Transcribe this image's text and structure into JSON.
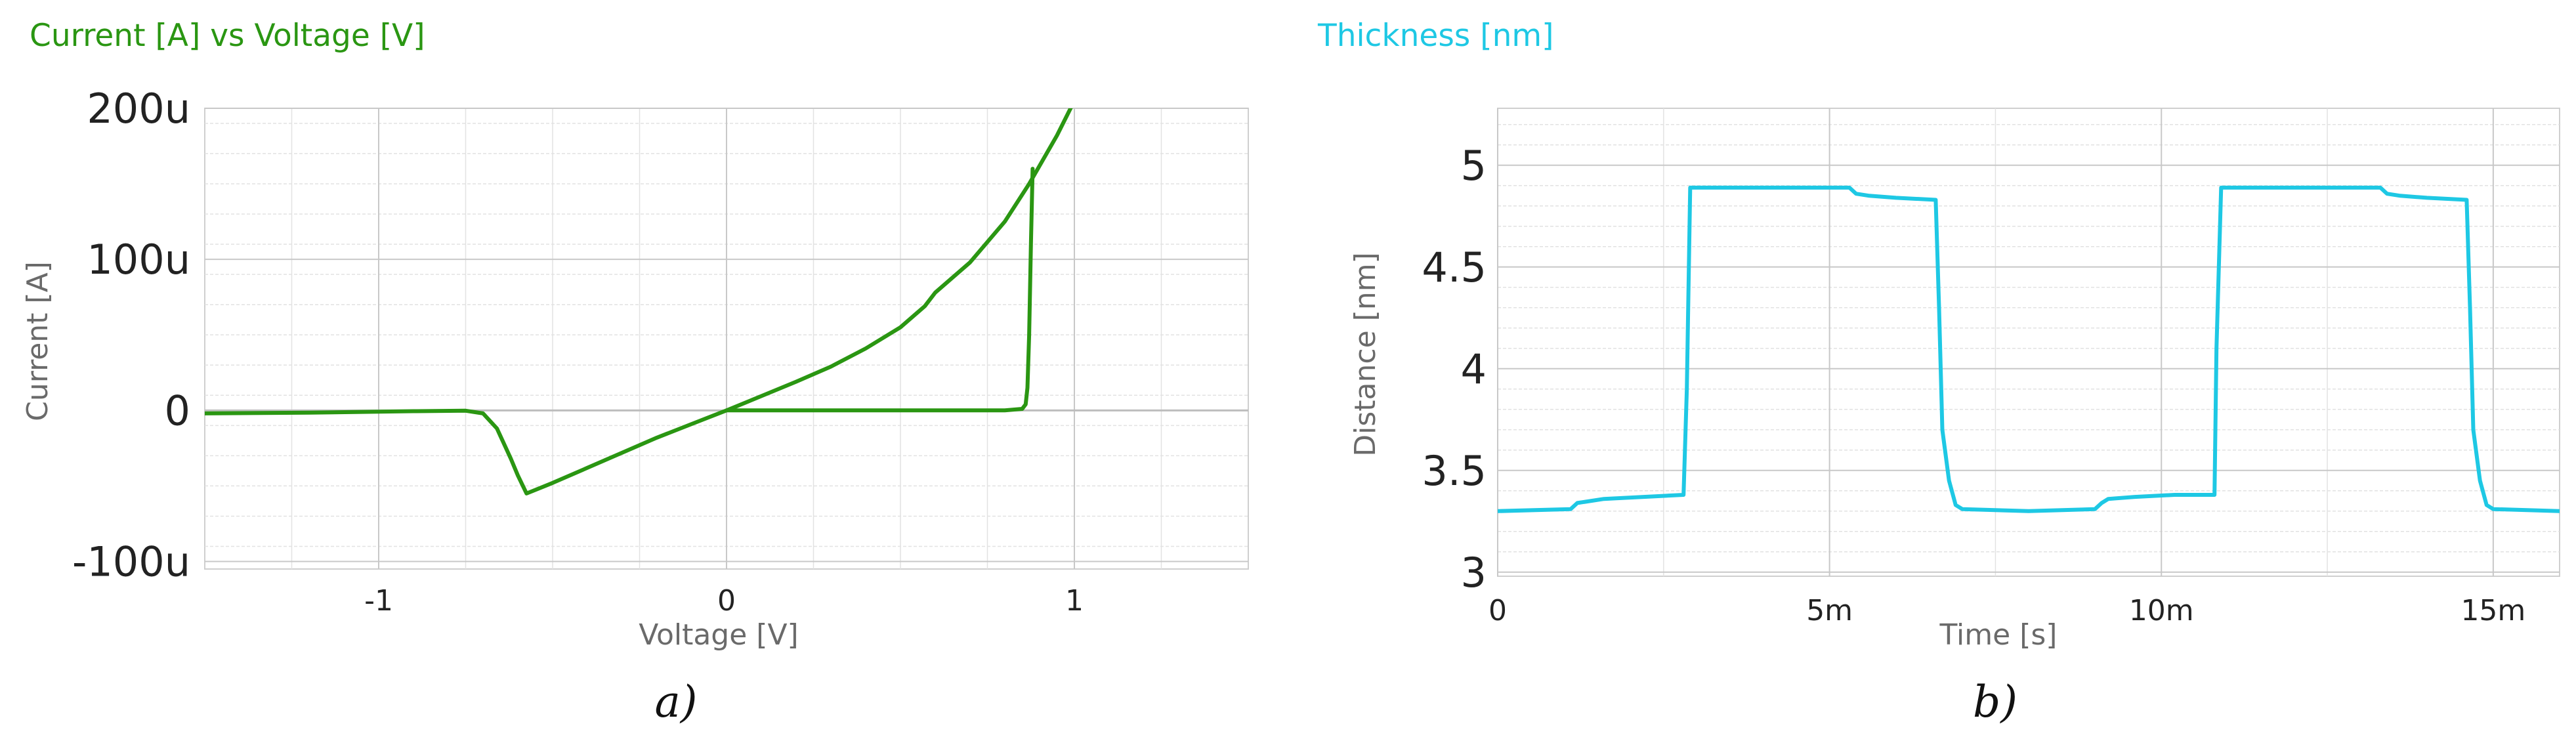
{
  "colors": {
    "iv_curve": "#2a9612",
    "thickness_curve": "#1ec8e4",
    "axis_text": "#222222",
    "label_text": "#6a6a6a",
    "grid_major": "#c8c8c8",
    "grid_minor": "#e2e2e2",
    "zero_line": "#bdbdbd",
    "frame": "#cfcfcf"
  },
  "chart_data": [
    {
      "type": "line",
      "title": "Current [A] vs Voltage [V]",
      "xlabel": "Voltage [V]",
      "ylabel": "Current [A]",
      "xlim": [
        -1.5,
        1.5
      ],
      "ylim": [
        -0.000105,
        0.0002
      ],
      "x_ticks": [
        -1,
        0,
        1
      ],
      "x_tick_labels": [
        "-1",
        "0",
        "1"
      ],
      "y_ticks": [
        -0.0001,
        0,
        0.0001,
        0.0002
      ],
      "y_tick_labels": [
        "-100u",
        "0",
        "100u",
        "200u"
      ],
      "grid": true,
      "caption": "a)",
      "series": [
        {
          "x": [
            -1.5,
            -1.2,
            -0.9,
            -0.75,
            -0.7,
            -0.66,
            -0.62,
            -0.6,
            -0.575,
            -0.5,
            -0.4,
            -0.3,
            -0.2,
            -0.1,
            0,
            0.1,
            0.2,
            0.3,
            0.4,
            0.5,
            0.55,
            0.57,
            0.6,
            0.7,
            0.8,
            0.87,
            0.9,
            0.95,
            1.0
          ],
          "y": [
            -2e-06,
            -1.5e-06,
            -5e-07,
            -2e-07,
            -2e-06,
            -1.2e-05,
            -3.2e-05,
            -4.3e-05,
            -5.5e-05,
            -4.8e-05,
            -3.8e-05,
            -2.8e-05,
            -1.8e-05,
            -9e-06,
            0,
            9.5e-06,
            1.9e-05,
            2.9e-05,
            4.1e-05,
            5.5e-05,
            6.5e-05,
            6.9e-05,
            7.8e-05,
            9.8e-05,
            0.000125,
            0.00015,
            0.000162,
            0.000182,
            0.000205
          ]
        },
        {
          "x": [
            0,
            0.4,
            0.8,
            0.85,
            0.86,
            0.865,
            0.87,
            0.875,
            0.88
          ],
          "y": [
            0,
            0,
            0,
            1e-06,
            4e-06,
            1.5e-05,
            5e-05,
            0.00011,
            0.00016
          ]
        }
      ]
    },
    {
      "type": "line",
      "title": "Thickness [nm]",
      "xlabel": "Time [s]",
      "ylabel": "Distance [nm]",
      "xlim": [
        0,
        0.016
      ],
      "ylim": [
        2.98,
        5.28
      ],
      "x_ticks": [
        0,
        0.005,
        0.01,
        0.015
      ],
      "x_tick_labels": [
        "0",
        "5m",
        "10m",
        "15m"
      ],
      "y_ticks": [
        3,
        3.5,
        4,
        4.5,
        5
      ],
      "y_tick_labels": [
        "3",
        "3.5",
        "4",
        "4.5",
        "5"
      ],
      "grid": true,
      "caption": "b)",
      "series": [
        {
          "x": [
            0,
            0.0011,
            0.0012,
            0.0016,
            0.0022,
            0.0028,
            0.00285,
            0.0029,
            0.0053,
            0.0054,
            0.0056,
            0.006,
            0.0066,
            0.00665,
            0.0067,
            0.0068,
            0.0069,
            0.007,
            0.008,
            0.009,
            0.0091,
            0.0092,
            0.0096,
            0.0102,
            0.0108,
            0.01083,
            0.0109,
            0.0133,
            0.0134,
            0.0136,
            0.014,
            0.0146,
            0.01465,
            0.0147,
            0.0148,
            0.0149,
            0.015,
            0.016
          ],
          "y": [
            3.3,
            3.31,
            3.34,
            3.36,
            3.37,
            3.38,
            3.9,
            4.89,
            4.89,
            4.86,
            4.85,
            4.84,
            4.83,
            4.3,
            3.7,
            3.45,
            3.33,
            3.31,
            3.3,
            3.31,
            3.34,
            3.36,
            3.37,
            3.38,
            3.38,
            4.1,
            4.89,
            4.89,
            4.86,
            4.85,
            4.84,
            4.83,
            4.3,
            3.7,
            3.45,
            3.33,
            3.31,
            3.3
          ]
        }
      ]
    }
  ]
}
